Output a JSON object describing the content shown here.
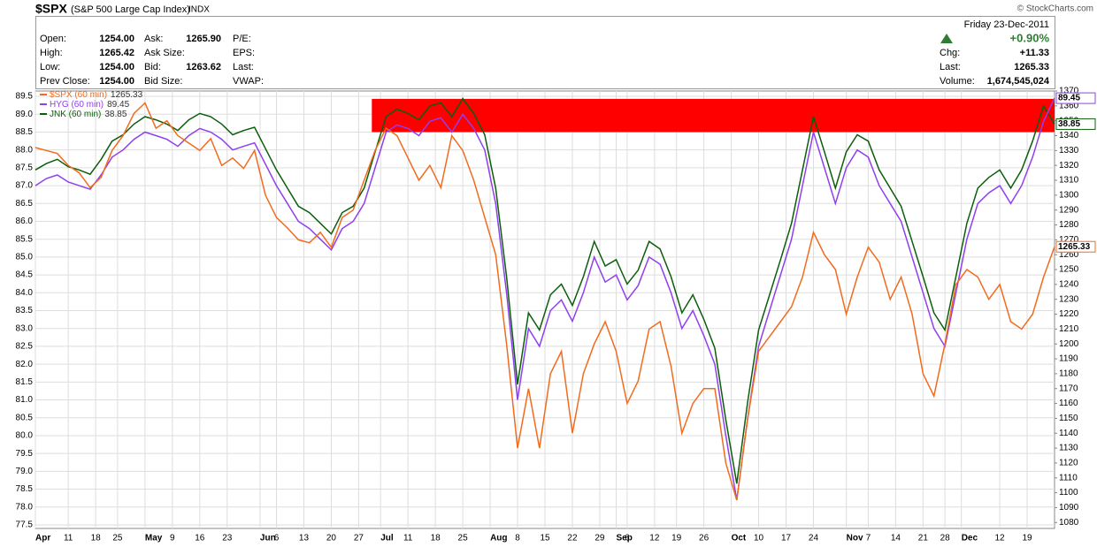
{
  "chart_data": {
    "type": "line",
    "header": {
      "symbol": "$SPX",
      "name": "(S&P 500 Large Cap Index)",
      "exchange": "INDX",
      "credit": "© StockCharts.com",
      "date": "Friday 23-Dec-2011",
      "change_pct": "+0.90%",
      "fields": [
        [
          "Open:",
          "1254.00",
          "Ask:",
          "1265.90",
          "P/E:"
        ],
        [
          "High:",
          "1265.42",
          "Ask Size:",
          "",
          "EPS:"
        ],
        [
          "Low:",
          "1254.00",
          "Bid:",
          "1263.62",
          "Last:"
        ],
        [
          "Prev Close:",
          "1254.00",
          "Bid Size:",
          "",
          "VWAP:"
        ]
      ],
      "right_fields": [
        [
          "Chg:",
          "+11.33"
        ],
        [
          "Last:",
          "1265.33"
        ],
        [
          "Volume:",
          "1,674,545,024"
        ]
      ]
    },
    "x": [
      0,
      2,
      4,
      6,
      8,
      10,
      12,
      14,
      16,
      18,
      20,
      22,
      24,
      26,
      28,
      30,
      32,
      34,
      36,
      38,
      40,
      42,
      44,
      46,
      48,
      50,
      52,
      54,
      56,
      58,
      60,
      62,
      64,
      66,
      68,
      70,
      72,
      74,
      76,
      78,
      80,
      82,
      84,
      86,
      88,
      90,
      92,
      94,
      96,
      98,
      100,
      102,
      104,
      106,
      108,
      110,
      112,
      114,
      116,
      118,
      120,
      122,
      124,
      126,
      128,
      130,
      132,
      134,
      136,
      138,
      140,
      142,
      144,
      146,
      148,
      150,
      152,
      154,
      156,
      158,
      160,
      162,
      164,
      166,
      168,
      170,
      172,
      174,
      176,
      178,
      180,
      182,
      184,
      186
    ],
    "series": [
      {
        "name": "$SPX (60 min)",
        "color": "#f26b1d",
        "axis": "y2",
        "values": [
          1332,
          1330,
          1328,
          1320,
          1315,
          1305,
          1312,
          1330,
          1340,
          1355,
          1362,
          1345,
          1350,
          1340,
          1335,
          1330,
          1338,
          1320,
          1325,
          1318,
          1330,
          1300,
          1285,
          1278,
          1270,
          1268,
          1275,
          1265,
          1285,
          1290,
          1310,
          1330,
          1345,
          1340,
          1325,
          1310,
          1320,
          1305,
          1340,
          1330,
          1310,
          1285,
          1260,
          1200,
          1130,
          1170,
          1130,
          1180,
          1195,
          1140,
          1180,
          1200,
          1215,
          1195,
          1160,
          1175,
          1210,
          1215,
          1185,
          1140,
          1160,
          1170,
          1170,
          1120,
          1095,
          1150,
          1195,
          1205,
          1215,
          1225,
          1245,
          1275,
          1260,
          1250,
          1220,
          1245,
          1265,
          1255,
          1230,
          1245,
          1220,
          1180,
          1165,
          1200,
          1240,
          1250,
          1245,
          1230,
          1240,
          1215,
          1210,
          1220,
          1245,
          1265.33
        ]
      },
      {
        "name": "HYG (60 min)",
        "color": "#8f3ff0",
        "values": [
          87.0,
          87.2,
          87.3,
          87.1,
          87.0,
          86.9,
          87.3,
          87.8,
          88.0,
          88.3,
          88.5,
          88.4,
          88.3,
          88.1,
          88.4,
          88.6,
          88.5,
          88.3,
          88.0,
          88.1,
          88.2,
          87.6,
          87.0,
          86.5,
          86.0,
          85.8,
          85.5,
          85.2,
          85.8,
          86.0,
          86.5,
          87.5,
          88.5,
          88.7,
          88.6,
          88.4,
          88.8,
          88.9,
          88.5,
          89.0,
          88.6,
          88.0,
          86.5,
          84.0,
          81.0,
          83.0,
          82.5,
          83.5,
          83.8,
          83.2,
          84.0,
          85.0,
          84.3,
          84.5,
          83.8,
          84.2,
          85.0,
          84.8,
          84.0,
          83.0,
          83.5,
          82.8,
          82.0,
          80.0,
          78.2,
          80.5,
          82.5,
          83.5,
          84.5,
          85.5,
          87.0,
          88.5,
          87.5,
          86.5,
          87.5,
          88.0,
          87.8,
          87.0,
          86.5,
          86.0,
          85.0,
          84.0,
          83.0,
          82.5,
          84.0,
          85.5,
          86.5,
          86.8,
          87.0,
          86.5,
          87.0,
          87.8,
          88.8,
          89.45
        ]
      },
      {
        "name": "JNK (60 min)",
        "color": "#0b5e0b",
        "axis": "y3",
        "values": [
          38.42,
          38.48,
          38.52,
          38.45,
          38.42,
          38.38,
          38.52,
          38.69,
          38.75,
          38.85,
          38.92,
          38.89,
          38.85,
          38.79,
          38.89,
          38.95,
          38.92,
          38.85,
          38.75,
          38.79,
          38.82,
          38.62,
          38.42,
          38.25,
          38.08,
          38.02,
          37.92,
          37.82,
          38.02,
          38.08,
          38.25,
          38.59,
          38.92,
          38.99,
          38.95,
          38.89,
          39.02,
          39.05,
          38.92,
          39.09,
          38.95,
          38.75,
          38.25,
          37.42,
          36.41,
          37.08,
          36.92,
          37.25,
          37.35,
          37.15,
          37.42,
          37.75,
          37.52,
          37.58,
          37.35,
          37.48,
          37.75,
          37.68,
          37.42,
          37.08,
          37.25,
          37.02,
          36.75,
          36.08,
          35.48,
          36.25,
          36.92,
          37.25,
          37.58,
          37.92,
          38.42,
          38.92,
          38.59,
          38.25,
          38.59,
          38.75,
          38.69,
          38.42,
          38.25,
          38.08,
          37.75,
          37.42,
          37.08,
          36.92,
          37.42,
          37.92,
          38.25,
          38.35,
          38.42,
          38.25,
          38.42,
          38.69,
          39.02,
          38.85
        ]
      }
    ],
    "xlim": [
      0,
      186
    ],
    "ylim": [
      77.4,
      89.65
    ],
    "y2lim": [
      1076,
      1370
    ],
    "y3lim": [
      35.06,
      39.16
    ],
    "xticks": [
      {
        "value": 0,
        "label": "Apr"
      },
      {
        "value": 6,
        "label": "11"
      },
      {
        "value": 11,
        "label": "18"
      },
      {
        "value": 15,
        "label": "25"
      },
      {
        "value": 20,
        "label": "May"
      },
      {
        "value": 25,
        "label": "9"
      },
      {
        "value": 30,
        "label": "16"
      },
      {
        "value": 35,
        "label": "23"
      },
      {
        "value": 41,
        "label": "Jun"
      },
      {
        "value": 44,
        "label": "6"
      },
      {
        "value": 49,
        "label": "13"
      },
      {
        "value": 54,
        "label": "20"
      },
      {
        "value": 59,
        "label": "27"
      },
      {
        "value": 63,
        "label": "Jul"
      },
      {
        "value": 68,
        "label": "11"
      },
      {
        "value": 73,
        "label": "18"
      },
      {
        "value": 78,
        "label": "25"
      },
      {
        "value": 83,
        "label": "Aug"
      },
      {
        "value": 88,
        "label": "8"
      },
      {
        "value": 93,
        "label": "15"
      },
      {
        "value": 98,
        "label": "22"
      },
      {
        "value": 103,
        "label": "29"
      },
      {
        "value": 106,
        "label": "Sep"
      },
      {
        "value": 108,
        "label": "6"
      },
      {
        "value": 113,
        "label": "12"
      },
      {
        "value": 117,
        "label": "19"
      },
      {
        "value": 122,
        "label": "26"
      },
      {
        "value": 127,
        "label": "Oct"
      },
      {
        "value": 132,
        "label": "10"
      },
      {
        "value": 137,
        "label": "17"
      },
      {
        "value": 142,
        "label": "24"
      },
      {
        "value": 148,
        "label": "Nov"
      },
      {
        "value": 152,
        "label": "7"
      },
      {
        "value": 157,
        "label": "14"
      },
      {
        "value": 162,
        "label": "21"
      },
      {
        "value": 166,
        "label": "28"
      },
      {
        "value": 169,
        "label": "Dec"
      },
      {
        "value": 176,
        "label": "12"
      },
      {
        "value": 181,
        "label": "19"
      }
    ],
    "yticks": [
      77.5,
      {
        "value": 78,
        "label": "78.0"
      },
      78.5,
      {
        "value": 79,
        "label": "79.0"
      },
      79.5,
      {
        "value": 80,
        "label": "80.0"
      },
      80.5,
      {
        "value": 81,
        "label": "81.0"
      },
      81.5,
      {
        "value": 82,
        "label": "82.0"
      },
      82.5,
      {
        "value": 83,
        "label": "83.0"
      },
      83.5,
      {
        "value": 84,
        "label": "84.0"
      },
      84.5,
      {
        "value": 85,
        "label": "85.0"
      },
      85.5,
      {
        "value": 86,
        "label": "86.0"
      },
      86.5,
      {
        "value": 87,
        "label": "87.0"
      },
      87.5,
      {
        "value": 88,
        "label": "88.0"
      },
      88.5,
      {
        "value": 89,
        "label": "89.0"
      },
      89.5
    ],
    "y2ticks": [
      1080,
      1090,
      1100,
      1110,
      1120,
      1130,
      1140,
      1150,
      1160,
      1170,
      1180,
      1190,
      1200,
      1210,
      1220,
      1230,
      1240,
      1250,
      1260,
      1270,
      1280,
      1290,
      1300,
      1310,
      1320,
      1330,
      1340,
      1350,
      1360,
      1370
    ],
    "highlight": {
      "x": [
        61.4,
        186
      ],
      "y": [
        88.5,
        89.43
      ],
      "color": "#ff0000"
    },
    "grid": true
  }
}
